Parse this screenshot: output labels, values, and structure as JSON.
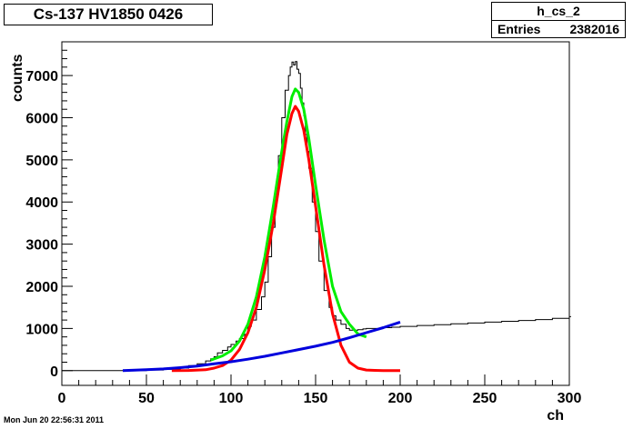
{
  "canvas": {
    "title": "Cs-137 HV1850 0426",
    "stats": {
      "name": "h_cs_2",
      "entries_label": "Entries",
      "entries_value": "2382016"
    },
    "footer_timestamp": "Mon Jun 20 22:56:31 2011"
  },
  "chart_data": {
    "type": "line",
    "title": "Cs-137 HV1850 0426",
    "xlabel": "ch",
    "ylabel": "counts",
    "xlim": [
      0,
      300
    ],
    "ylim": [
      -350,
      7800
    ],
    "x_ticks": [
      0,
      50,
      100,
      150,
      200,
      250,
      300
    ],
    "y_ticks": [
      0,
      1000,
      2000,
      3000,
      4000,
      5000,
      6000,
      7000
    ],
    "grid": false,
    "legend": "none",
    "series": [
      {
        "style": "histogram",
        "color": "#000000",
        "x": [
          0,
          10,
          20,
          30,
          40,
          50,
          60,
          70,
          75,
          80,
          85,
          88,
          90,
          92,
          95,
          98,
          100,
          103,
          105,
          108,
          110,
          112,
          115,
          118,
          120,
          122,
          124,
          126,
          128,
          130,
          132,
          134,
          135,
          136,
          137,
          138,
          139,
          140,
          141,
          142,
          143,
          144,
          145,
          146,
          148,
          150,
          152,
          155,
          158,
          160,
          162,
          165,
          168,
          170,
          172,
          175,
          178,
          180,
          185,
          190,
          195,
          200,
          210,
          220,
          230,
          240,
          250,
          260,
          270,
          280,
          290,
          300
        ],
        "y": [
          0,
          0,
          0,
          0,
          0,
          15,
          30,
          60,
          120,
          160,
          230,
          280,
          330,
          420,
          480,
          560,
          620,
          700,
          760,
          860,
          1050,
          1200,
          1450,
          1750,
          2100,
          2700,
          3400,
          4200,
          5100,
          6000,
          6650,
          7000,
          7200,
          7320,
          7250,
          7330,
          7150,
          7050,
          6700,
          6350,
          6050,
          5600,
          5200,
          4800,
          4000,
          3300,
          2600,
          1900,
          1500,
          1300,
          1200,
          1100,
          1000,
          960,
          960,
          970,
          990,
          1000,
          1000,
          1020,
          1030,
          1050,
          1070,
          1090,
          1110,
          1130,
          1150,
          1170,
          1190,
          1210,
          1240,
          1280
        ]
      },
      {
        "style": "curve",
        "color": "#00ee00",
        "x": [
          88,
          95,
          100,
          105,
          110,
          115,
          120,
          125,
          130,
          133,
          136,
          138,
          140,
          143,
          146,
          150,
          155,
          160,
          165,
          170,
          175,
          180
        ],
        "y": [
          250,
          350,
          470,
          700,
          1100,
          1750,
          2700,
          3900,
          5200,
          5900,
          6500,
          6680,
          6600,
          6200,
          5500,
          4400,
          3100,
          2000,
          1400,
          1100,
          870,
          800
        ]
      },
      {
        "style": "curve",
        "color": "#ff0000",
        "x": [
          65,
          75,
          85,
          90,
          95,
          100,
          105,
          110,
          115,
          120,
          125,
          130,
          133,
          136,
          138,
          140,
          143,
          146,
          150,
          155,
          160,
          165,
          170,
          175,
          180,
          185,
          190,
          195,
          200
        ],
        "y": [
          0,
          3,
          20,
          60,
          120,
          250,
          500,
          900,
          1500,
          2400,
          3500,
          4800,
          5600,
          6100,
          6270,
          6150,
          5700,
          5000,
          3900,
          2500,
          1350,
          600,
          200,
          60,
          15,
          5,
          0,
          0,
          0
        ]
      },
      {
        "style": "curve",
        "color": "#0000dd",
        "x": [
          36,
          50,
          60,
          70,
          80,
          90,
          100,
          110,
          120,
          130,
          140,
          150,
          160,
          170,
          180,
          190,
          200
        ],
        "y": [
          0,
          20,
          40,
          70,
          110,
          160,
          210,
          270,
          340,
          420,
          500,
          580,
          670,
          780,
          900,
          1020,
          1150
        ]
      }
    ]
  }
}
